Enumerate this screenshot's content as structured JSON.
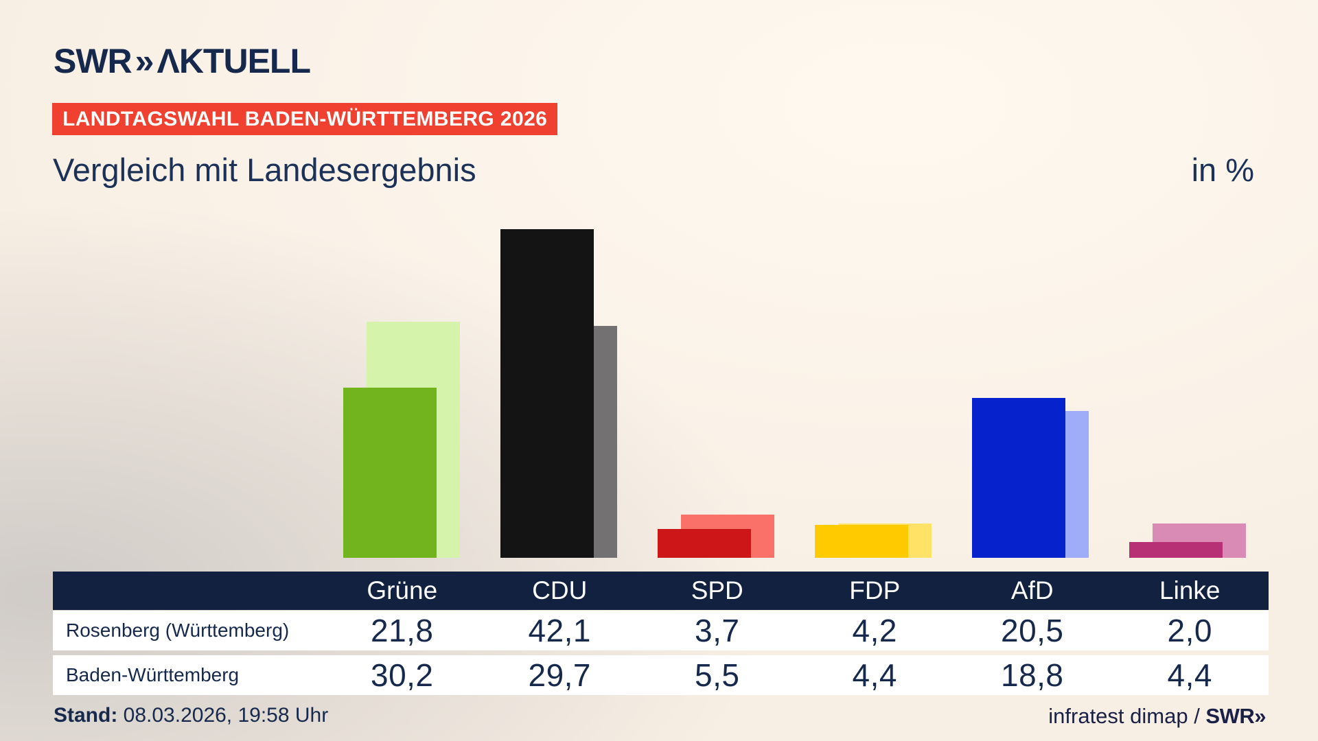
{
  "brand": {
    "swr": "SWR",
    "chevrons": "»",
    "aktuell": "ΛKTUELL"
  },
  "badge": {
    "label": "LANDTAGSWAHL BADEN-WÜRTTEMBERG 2026",
    "bg": "#f04130"
  },
  "heading": {
    "title": "Vergleich mit Landesergebnis",
    "unit": "in %"
  },
  "chart_data": {
    "type": "bar",
    "title": "Vergleich mit Landesergebnis",
    "unit": "%",
    "categories": [
      "Grüne",
      "CDU",
      "SPD",
      "FDP",
      "AfD",
      "Linke"
    ],
    "series": [
      {
        "name": "Rosenberg (Württemberg)",
        "values": [
          21.8,
          42.1,
          3.7,
          4.2,
          20.5,
          2.0
        ],
        "colors": [
          "#72b41e",
          "#141414",
          "#cd1618",
          "#ffcb00",
          "#0522cd",
          "#b72f75"
        ]
      },
      {
        "name": "Baden-Württemberg",
        "values": [
          30.2,
          29.7,
          5.5,
          4.4,
          18.8,
          4.4
        ],
        "colors": [
          "#d6f3ab",
          "#737171",
          "#f97168",
          "#ffe266",
          "#9facf8",
          "#d98ab5"
        ]
      }
    ],
    "ylim": [
      0,
      47
    ],
    "grid": false,
    "legend_position": "table-below",
    "background": "#f8efe4"
  },
  "table": {
    "corner": "",
    "header": [
      "Grüne",
      "CDU",
      "SPD",
      "FDP",
      "AfD",
      "Linke"
    ],
    "rows": [
      {
        "label": "Rosenberg (Württemberg)",
        "values": [
          "21,8",
          "42,1",
          "3,7",
          "4,2",
          "20,5",
          "2,0"
        ]
      },
      {
        "label": "Baden-Württemberg",
        "values": [
          "30,2",
          "29,7",
          "5,5",
          "4,4",
          "18,8",
          "4,4"
        ]
      }
    ]
  },
  "footer": {
    "stand_label": "Stand:",
    "stand_value": " 08.03.2026, 19:58 Uhr",
    "source_text": "infratest dimap / ",
    "source_brand": "SWR",
    "source_chevrons": "»"
  }
}
